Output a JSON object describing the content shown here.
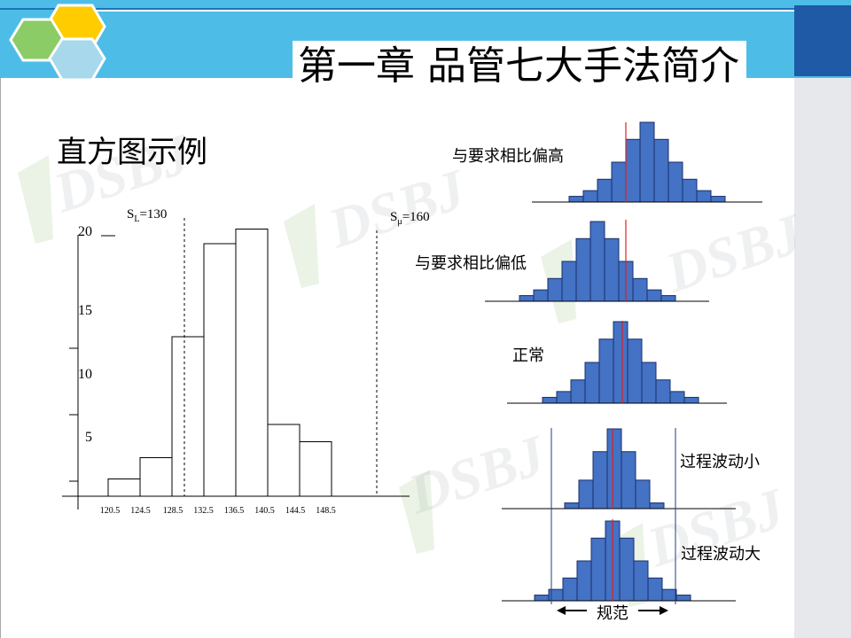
{
  "slide": {
    "title": "第一章 品管七大手法简介",
    "subtitle": "直方图示例"
  },
  "watermark": "DSBJ",
  "colors": {
    "accent_cyan": "#4dbde8",
    "accent_navy": "#1e5aa6",
    "bar_blue": "#4472c4",
    "center_line": "#e02020",
    "hex_yellow": "#ffcc00",
    "hex_green": "#8ccc66",
    "hex_lightblue": "#a8d8ec"
  },
  "left_chart": {
    "sl_label": "S",
    "sl_sub": "L",
    "sl_value": "=130",
    "su_label": "S",
    "su_sub": "μ",
    "su_value": "=160",
    "y_ticks": [
      "20",
      "15",
      "10",
      "5"
    ],
    "x_ticks": [
      "120.5",
      "124.5",
      "128.5",
      "132.5",
      "136.5",
      "140.5",
      "144.5",
      "148.5"
    ]
  },
  "chart_data": {
    "type": "bar",
    "title": "",
    "xlabel": "",
    "ylabel": "",
    "categories": [
      "120.5-124.5",
      "124.5-128.5",
      "128.5-132.5",
      "132.5-136.5",
      "136.5-140.5",
      "140.5-144.5",
      "144.5-148.5"
    ],
    "values": [
      1.3,
      2.9,
      12,
      19,
      20.1,
      5.4,
      4.1
    ],
    "ylim": [
      0,
      20
    ],
    "spec_lower": 130,
    "spec_upper": 160,
    "grid": false
  },
  "examples": {
    "high": {
      "label": "与要求相比偏高",
      "values": [
        1,
        2,
        4,
        7,
        11,
        14,
        11,
        7,
        4,
        2,
        1
      ]
    },
    "low": {
      "label": "与要求相比偏低",
      "values": [
        1,
        2,
        4,
        7,
        11,
        14,
        11,
        7,
        4,
        2,
        1
      ]
    },
    "normal": {
      "label": "正常",
      "values": [
        1,
        2,
        4,
        7,
        11,
        14,
        11,
        7,
        4,
        2,
        1
      ]
    },
    "small": {
      "label": "过程波动小",
      "values": [
        1,
        5,
        10,
        14,
        10,
        5,
        1
      ]
    },
    "large": {
      "label": "过程波动大",
      "values": [
        1,
        2,
        4,
        7,
        11,
        14,
        11,
        7,
        4,
        2,
        1
      ]
    },
    "spec_label": "规范"
  }
}
